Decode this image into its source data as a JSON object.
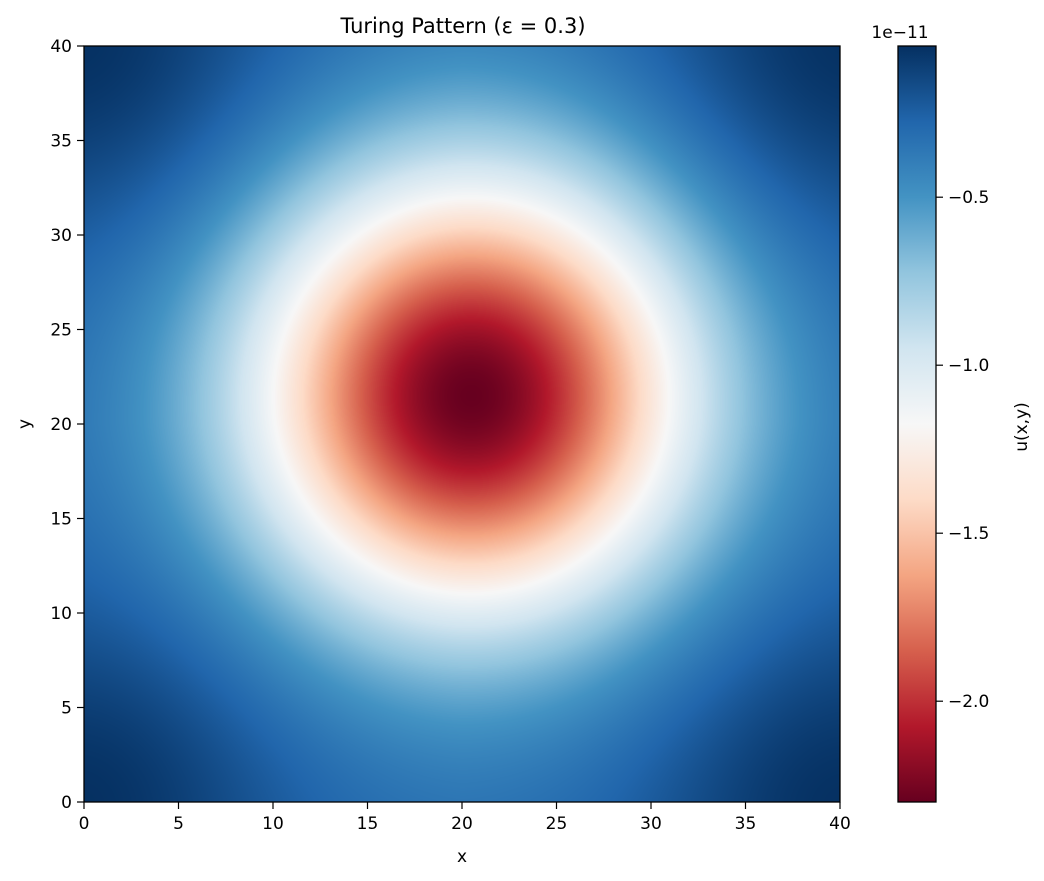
{
  "chart_data": {
    "type": "heatmap",
    "title": "Turing Pattern (ε = 0.3)",
    "xlabel": "x",
    "ylabel": "y",
    "xlim": [
      0,
      40
    ],
    "ylim": [
      0,
      40
    ],
    "xticks": [
      "0",
      "5",
      "10",
      "15",
      "20",
      "25",
      "30",
      "35",
      "40"
    ],
    "yticks": [
      "0",
      "5",
      "10",
      "15",
      "20",
      "25",
      "30",
      "35",
      "40"
    ],
    "colormap": "RdBu",
    "colorbar": {
      "label": "u(x,y)",
      "offset_text": "1e−11",
      "range": [
        -2.3,
        -0.05
      ],
      "ticks": [
        {
          "value": -0.5,
          "label": "−0.5"
        },
        {
          "value": -1.0,
          "label": "−1.0"
        },
        {
          "value": -1.5,
          "label": "−1.5"
        },
        {
          "value": -2.0,
          "label": "−2.0"
        }
      ]
    },
    "field": {
      "peak_center": [
        20.5,
        21.5
      ],
      "peak_value": -2.3,
      "white_ring_radius": 10.5,
      "background_value": -0.3,
      "corner_value": -0.05
    }
  }
}
